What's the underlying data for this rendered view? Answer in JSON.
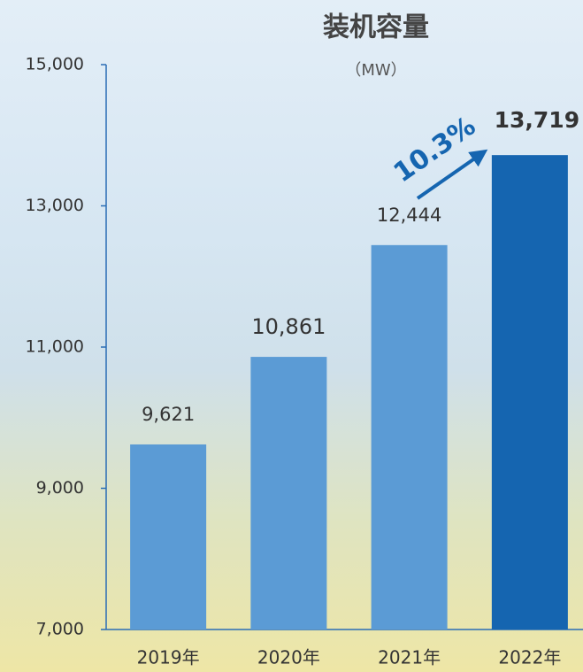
{
  "chart_data": {
    "type": "bar",
    "title": "装机容量",
    "subtitle": "（MW）",
    "categories": [
      "2019年",
      "2020年",
      "2021年",
      "2022年"
    ],
    "values": [
      9621,
      10861,
      12444,
      13719
    ],
    "value_labels": [
      "9,621",
      "10,861",
      "12,444",
      "13,719"
    ],
    "colors": [
      "#5b9bd5",
      "#5b9bd5",
      "#5b9bd5",
      "#1565b0"
    ],
    "ylim": [
      7000,
      15000
    ],
    "yticks": [
      {
        "value": 7000,
        "label": "7,000"
      },
      {
        "value": 9000,
        "label": "9,000"
      },
      {
        "value": 11000,
        "label": "11,000"
      },
      {
        "value": 13000,
        "label": "13,000"
      },
      {
        "value": 15000,
        "label": "15,000"
      }
    ],
    "annotations": [
      "10.3%"
    ]
  }
}
